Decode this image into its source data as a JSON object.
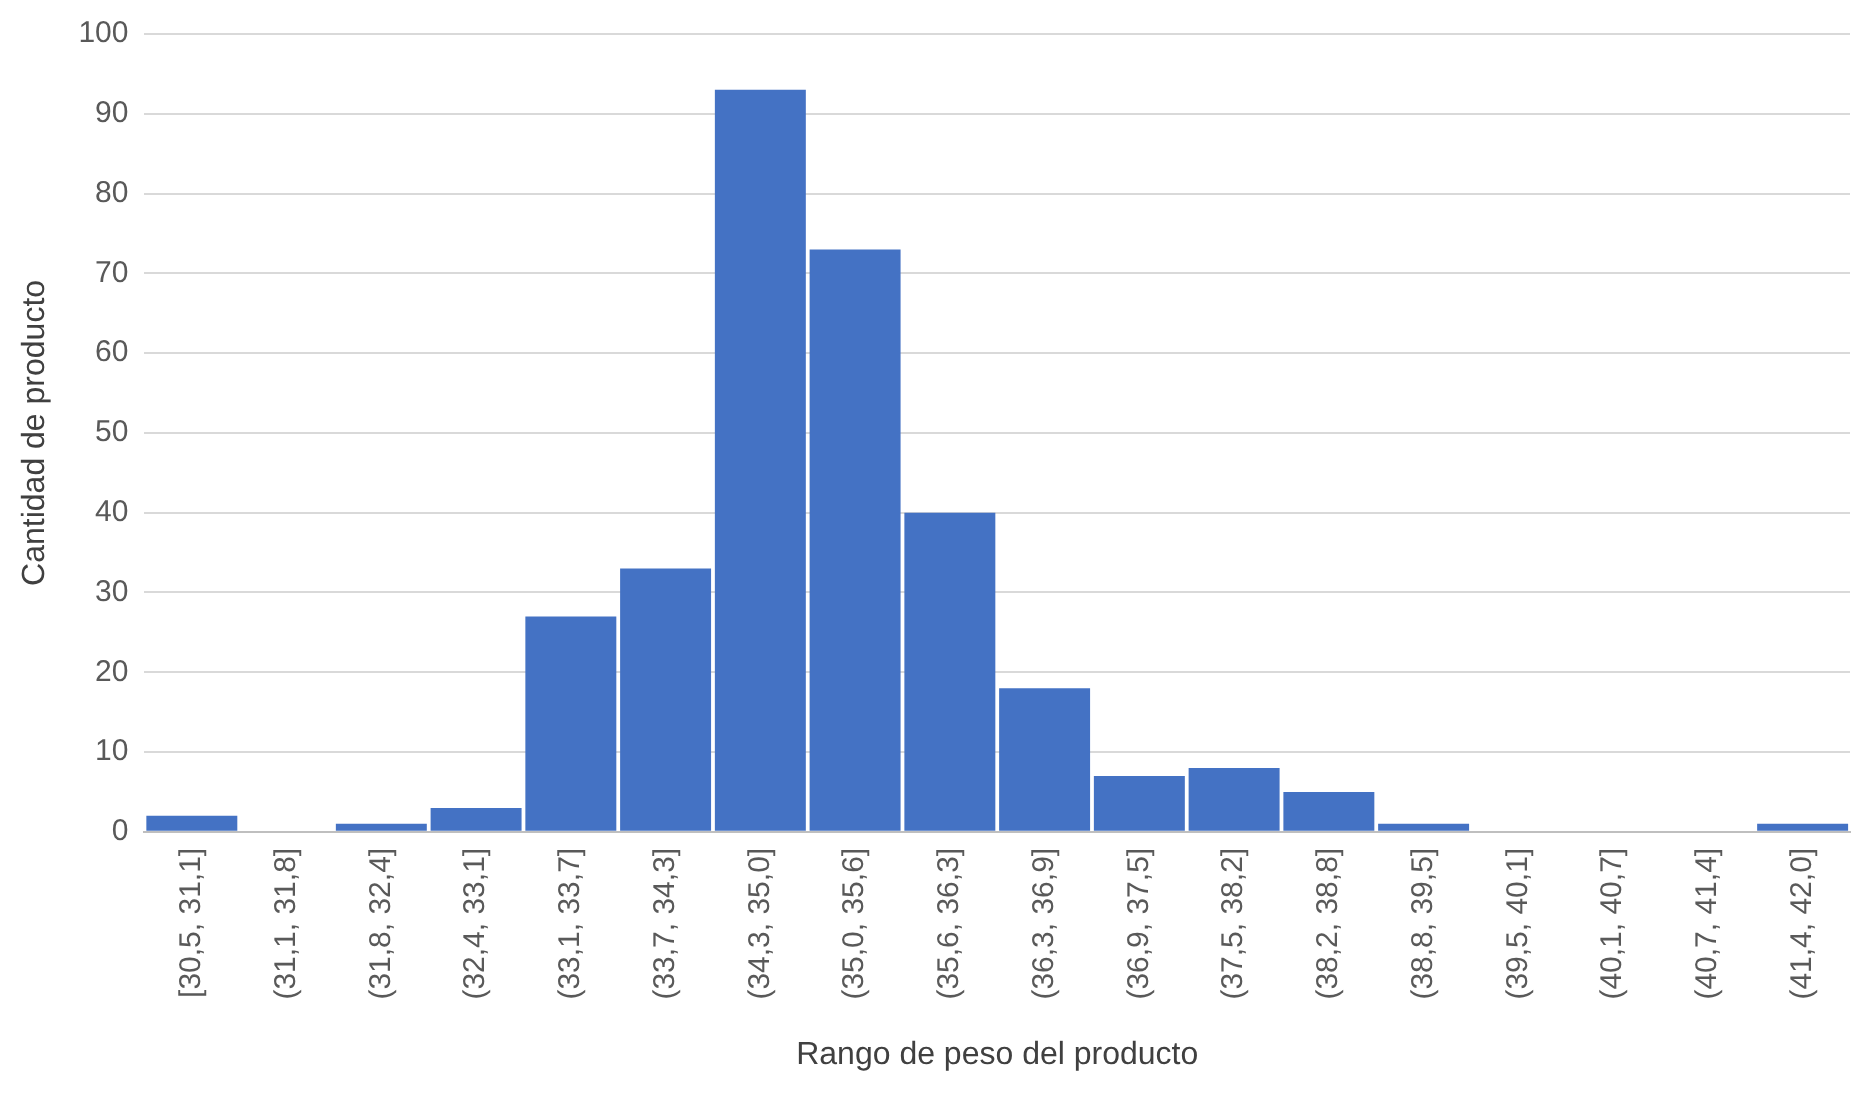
{
  "chart_data": {
    "type": "bar",
    "xlabel": "Rango de peso del producto",
    "ylabel": "Cantidad de producto",
    "categories": [
      "[30,5, 31,1]",
      "(31,1, 31,8]",
      "(31,8, 32,4]",
      "(32,4, 33,1]",
      "(33,1, 33,7]",
      "(33,7, 34,3]",
      "(34,3, 35,0]",
      "(35,0, 35,6]",
      "(35,6, 36,3]",
      "(36,3, 36,9]",
      "(36,9, 37,5]",
      "(37,5, 38,2]",
      "(38,2, 38,8]",
      "(38,8, 39,5]",
      "(39,5, 40,1]",
      "(40,1, 40,7]",
      "(40,7, 41,4]",
      "(41,4, 42,0]"
    ],
    "values": [
      2,
      0,
      1,
      3,
      27,
      33,
      93,
      73,
      40,
      18,
      7,
      8,
      5,
      1,
      0,
      0,
      0,
      1
    ],
    "color": "#4472c4",
    "ylim": [
      0,
      100
    ],
    "yticks": [
      0,
      10,
      20,
      30,
      40,
      50,
      60,
      70,
      80,
      90,
      100
    ],
    "grid": "y"
  }
}
